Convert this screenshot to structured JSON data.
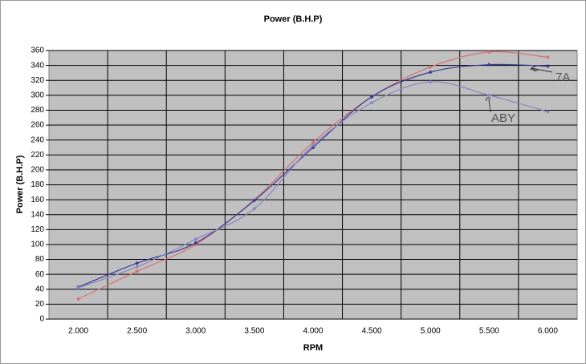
{
  "chart_data": {
    "type": "line",
    "title": "Power (B.H.P)",
    "x_label": "RPM",
    "y_label": "Power (B.H.P)",
    "categories": [
      "2.000",
      "2.500",
      "3.000",
      "3.500",
      "4.000",
      "4.500",
      "5.000",
      "5.500",
      "6.000"
    ],
    "series": [
      {
        "color": "#d87070",
        "values": [
          27,
          64,
          100,
          160,
          237,
          298,
          338,
          358,
          351
        ]
      },
      {
        "color": "#3a3a98",
        "values": [
          43,
          75,
          102,
          159,
          230,
          298,
          331,
          341,
          339
        ]
      },
      {
        "color": "#8585c4",
        "values": [
          42,
          70,
          107,
          148,
          233,
          290,
          318,
          300,
          278
        ]
      }
    ],
    "annotations": [
      "7A",
      "ABY"
    ],
    "ylim": [
      0,
      360
    ],
    "yticks": [
      0,
      20,
      40,
      60,
      80,
      100,
      120,
      140,
      160,
      180,
      200,
      220,
      240,
      260,
      280,
      300,
      320,
      340,
      360
    ],
    "grid": true,
    "smooth": true
  }
}
